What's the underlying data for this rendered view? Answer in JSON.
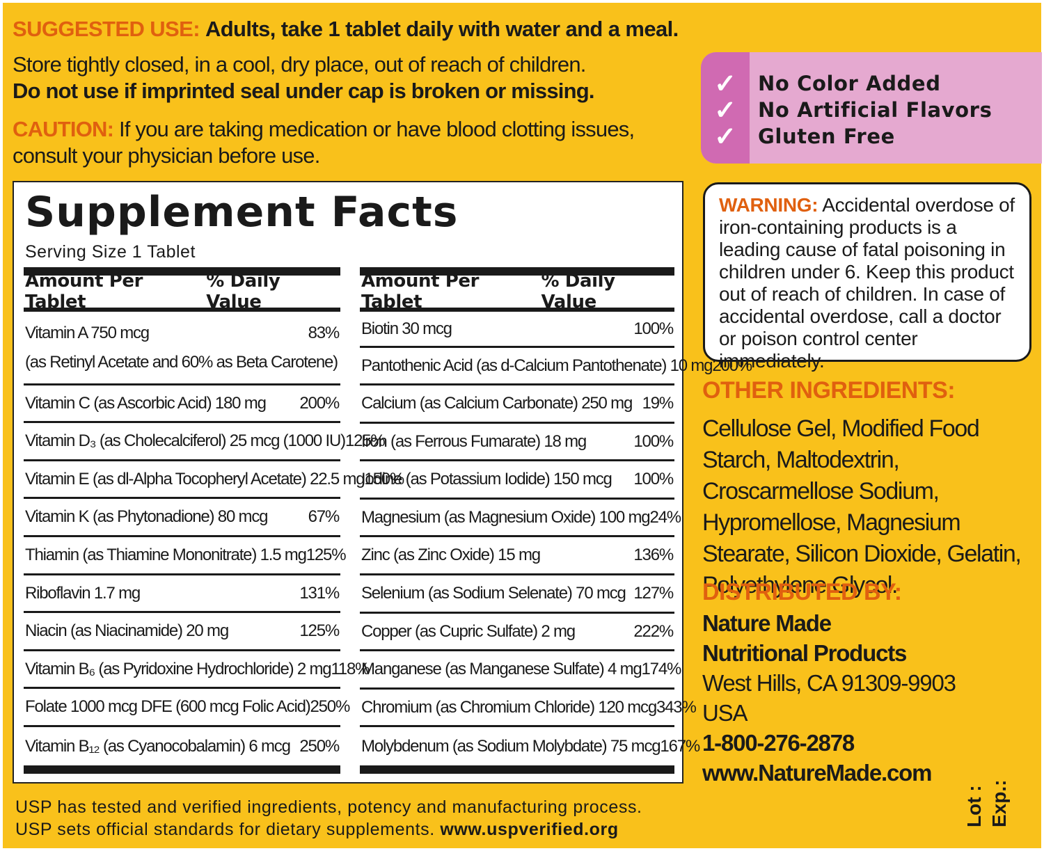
{
  "suggested_use": {
    "label": "SUGGESTED USE:",
    "text": "Adults, take 1 tablet daily with water and a meal."
  },
  "storage": {
    "line1": "Store tightly closed, in a cool, dry place, out of reach of children.",
    "line2": "Do not use if imprinted seal under cap is broken or missing."
  },
  "caution": {
    "label": "CAUTION:",
    "text": "If you are taking medication or have blood clotting issues, consult your physician before use."
  },
  "badges": [
    {
      "icon": "checkmark-icon",
      "check": "✓",
      "label": "No Color Added"
    },
    {
      "icon": "checkmark-icon",
      "check": "✓",
      "label": "No Artificial Flavors"
    },
    {
      "icon": "checkmark-icon",
      "check": "✓",
      "label": "Gluten Free"
    }
  ],
  "facts": {
    "title": "Supplement Facts",
    "serving": "Serving Size 1 Tablet",
    "header_amount": "Amount Per Tablet",
    "header_dv": "% Daily Value",
    "left": [
      {
        "name": "Vitamin A  750 mcg",
        "sub": "(as Retinyl Acetate and 60% as Beta Carotene)",
        "dv": "83%"
      },
      {
        "name": "Vitamin C (as Ascorbic Acid)  180 mg",
        "dv": "200%"
      },
      {
        "name": "Vitamin D₃ (as Cholecalciferol)  25 mcg (1000 IU)",
        "dv": "125%"
      },
      {
        "name": "Vitamin E (as dl-Alpha Tocopheryl Acetate)  22.5 mg",
        "dv": "150%"
      },
      {
        "name": "Vitamin K (as Phytonadione)  80 mcg",
        "dv": "67%"
      },
      {
        "name": "Thiamin (as Thiamine Mononitrate)  1.5 mg",
        "dv": "125%"
      },
      {
        "name": "Riboflavin  1.7 mg",
        "dv": "131%"
      },
      {
        "name": "Niacin (as Niacinamide)  20 mg",
        "dv": "125%"
      },
      {
        "name": "Vitamin B₆ (as Pyridoxine Hydrochloride)  2 mg",
        "dv": "118%"
      },
      {
        "name": "Folate  1000 mcg DFE (600 mcg Folic Acid)",
        "dv": "250%"
      },
      {
        "name": "Vitamin B₁₂ (as Cyanocobalamin)  6 mcg",
        "dv": "250%"
      }
    ],
    "right": [
      {
        "name": "Biotin  30 mcg",
        "dv": "100%"
      },
      {
        "name": "Pantothenic Acid (as d-Calcium Pantothenate)  10 mg",
        "dv": "200%"
      },
      {
        "name": "Calcium (as Calcium Carbonate)  250 mg",
        "dv": "19%"
      },
      {
        "name": "Iron (as Ferrous Fumarate)  18 mg",
        "dv": "100%"
      },
      {
        "name": "Iodine (as Potassium Iodide)  150 mcg",
        "dv": "100%"
      },
      {
        "name": "Magnesium (as Magnesium Oxide)  100 mg",
        "dv": "24%"
      },
      {
        "name": "Zinc (as Zinc Oxide)  15 mg",
        "dv": "136%"
      },
      {
        "name": "Selenium (as Sodium Selenate)  70 mcg",
        "dv": "127%"
      },
      {
        "name": "Copper (as Cupric Sulfate)  2 mg",
        "dv": "222%"
      },
      {
        "name": "Manganese (as Manganese Sulfate)  4 mg",
        "dv": "174%"
      },
      {
        "name": "Chromium (as Chromium Chloride)  120 mcg",
        "dv": "343%"
      },
      {
        "name": "Molybdenum (as Sodium Molybdate)  75 mcg",
        "dv": "167%"
      }
    ]
  },
  "warning": {
    "label": "WARNING:",
    "text": "Accidental overdose of iron-containing products is a leading cause of fatal poisoning in children under 6. Keep this product out of reach of children. In case of accidental overdose, call a doctor or poison control center immediately."
  },
  "other_ingredients": {
    "heading": "OTHER INGREDIENTS:",
    "text": "Cellulose Gel, Modified Food Starch, Maltodextrin, Croscarmellose Sodium, Hypromellose, Magnesium Stearate, Silicon Dioxide, Gelatin, Polyethylene Glycol."
  },
  "distributed_by": {
    "heading": "DISTRIBUTED BY:",
    "line1": "Nature Made",
    "line2": "Nutritional Products",
    "line3": "West Hills, CA 91309-9903",
    "line4": "USA",
    "phone": "1-800-276-2878",
    "website": "www.NatureMade.com"
  },
  "usp": {
    "line1": "USP has tested and verified ingredients, potency and manufacturing process.",
    "line2": "USP sets official standards for dietary supplements.",
    "url": "www.uspverified.org"
  },
  "lot_label": "Lot :",
  "exp_label": "Exp.:",
  "colors": {
    "background": "#f9c11b",
    "accent_orange": "#e0600f",
    "badge_pink": "#e5a9d0",
    "badge_magenta": "#d06ab2"
  }
}
